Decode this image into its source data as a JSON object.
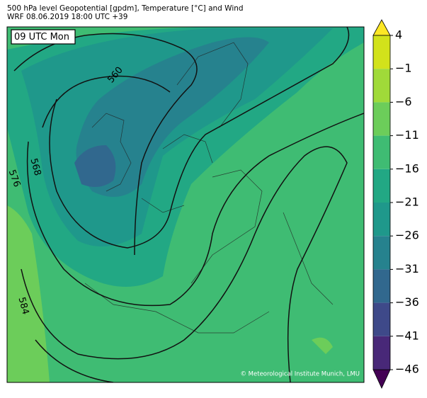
{
  "header": {
    "title": "500 hPa level Geopotential [gpdm], Temperature [°C] and Wind",
    "subtitle": "WRF 08.06.2019 18:00 UTC +39"
  },
  "map": {
    "time_label": "09 UTC Mon",
    "credit": "© Meteorological Institute Munich, LMU",
    "contour_labels": [
      "560",
      "568",
      "576",
      "584"
    ]
  },
  "colorbar": {
    "ticks": [
      4,
      {
        "value": -1,
        "label": "−1"
      },
      {
        "value": -6,
        "label": "−6"
      },
      {
        "value": -11,
        "label": "−11"
      },
      {
        "value": -16,
        "label": "−16"
      },
      {
        "value": -21,
        "label": "−21"
      },
      {
        "value": -26,
        "label": "−26"
      },
      {
        "value": -31,
        "label": "−31"
      },
      {
        "value": -36,
        "label": "−36"
      },
      {
        "value": -41,
        "label": "−41"
      },
      {
        "value": -46,
        "label": "−46"
      }
    ],
    "colors": [
      "#fde725",
      "#d2e21b",
      "#a0da39",
      "#6ccd5a",
      "#3fbc73",
      "#22a884",
      "#1f988b",
      "#26828e",
      "#31688e",
      "#3e4989",
      "#482878",
      "#440154"
    ]
  }
}
